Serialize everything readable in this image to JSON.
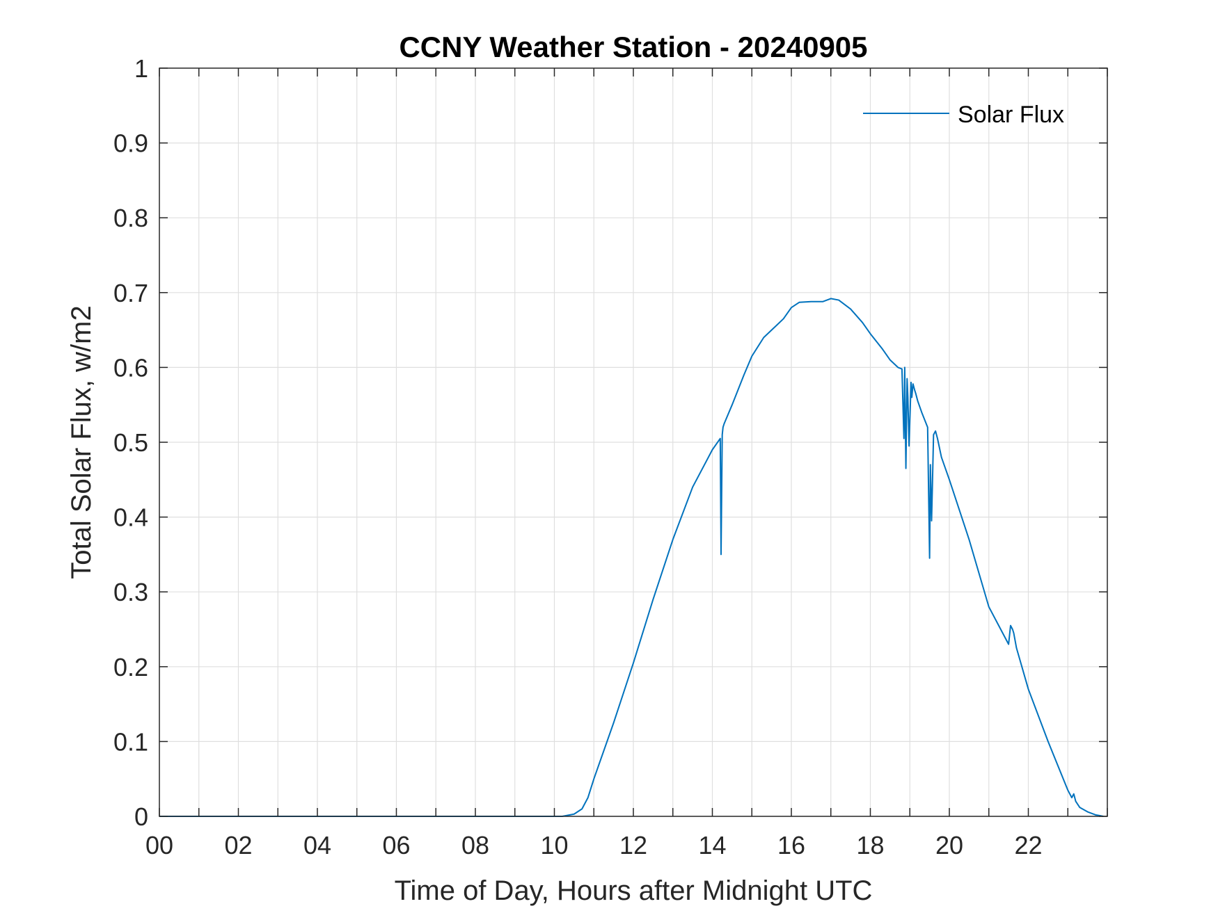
{
  "chart_data": {
    "type": "line",
    "title": "CCNY Weather Station - 20240905",
    "xlabel": "Time of Day, Hours after Midnight UTC",
    "ylabel": "Total Solar Flux, w/m2",
    "xlim": [
      0,
      24
    ],
    "ylim": [
      0,
      1
    ],
    "x_ticks": [
      0,
      2,
      4,
      6,
      8,
      10,
      12,
      14,
      16,
      18,
      20,
      22
    ],
    "x_tick_labels": [
      "00",
      "02",
      "04",
      "06",
      "08",
      "10",
      "12",
      "14",
      "16",
      "18",
      "20",
      "22"
    ],
    "y_ticks": [
      0,
      0.1,
      0.2,
      0.3,
      0.4,
      0.5,
      0.6,
      0.7,
      0.8,
      0.9,
      1
    ],
    "y_tick_labels": [
      "0",
      "0.1",
      "0.2",
      "0.3",
      "0.4",
      "0.5",
      "0.6",
      "0.7",
      "0.8",
      "0.9",
      "1"
    ],
    "grid": true,
    "legend_position": "top-right",
    "series": [
      {
        "name": "Solar Flux",
        "color": "#0072BD",
        "x": [
          0,
          10.2,
          10.5,
          10.7,
          10.85,
          11.0,
          11.5,
          12.0,
          12.5,
          13.0,
          13.5,
          14.0,
          14.2,
          14.22,
          14.25,
          14.27,
          14.3,
          14.5,
          14.8,
          15.0,
          15.3,
          15.6,
          15.8,
          16.0,
          16.2,
          16.5,
          16.8,
          17.0,
          17.2,
          17.5,
          17.8,
          18.0,
          18.3,
          18.5,
          18.7,
          18.8,
          18.85,
          18.87,
          18.9,
          18.93,
          18.95,
          18.98,
          19.03,
          19.05,
          19.08,
          19.12,
          19.15,
          19.2,
          19.3,
          19.45,
          19.5,
          19.52,
          19.55,
          19.57,
          19.6,
          19.65,
          19.7,
          19.8,
          20.0,
          20.5,
          21.0,
          21.5,
          21.55,
          21.6,
          21.63,
          21.7,
          22.0,
          22.5,
          23.0,
          23.1,
          23.15,
          23.2,
          23.3,
          23.5,
          23.7,
          23.8,
          23.9
        ],
        "y": [
          0,
          0,
          0.003,
          0.01,
          0.025,
          0.05,
          0.125,
          0.205,
          0.29,
          0.37,
          0.44,
          0.49,
          0.505,
          0.35,
          0.51,
          0.52,
          0.525,
          0.55,
          0.59,
          0.615,
          0.64,
          0.655,
          0.665,
          0.68,
          0.687,
          0.688,
          0.688,
          0.692,
          0.69,
          0.678,
          0.66,
          0.645,
          0.625,
          0.61,
          0.6,
          0.598,
          0.505,
          0.6,
          0.465,
          0.585,
          0.56,
          0.495,
          0.58,
          0.56,
          0.578,
          0.57,
          0.565,
          0.555,
          0.54,
          0.52,
          0.345,
          0.47,
          0.395,
          0.44,
          0.51,
          0.515,
          0.505,
          0.48,
          0.45,
          0.37,
          0.28,
          0.23,
          0.255,
          0.25,
          0.245,
          0.225,
          0.17,
          0.1,
          0.035,
          0.025,
          0.03,
          0.02,
          0.012,
          0.006,
          0.002,
          0.001,
          0
        ]
      }
    ]
  }
}
